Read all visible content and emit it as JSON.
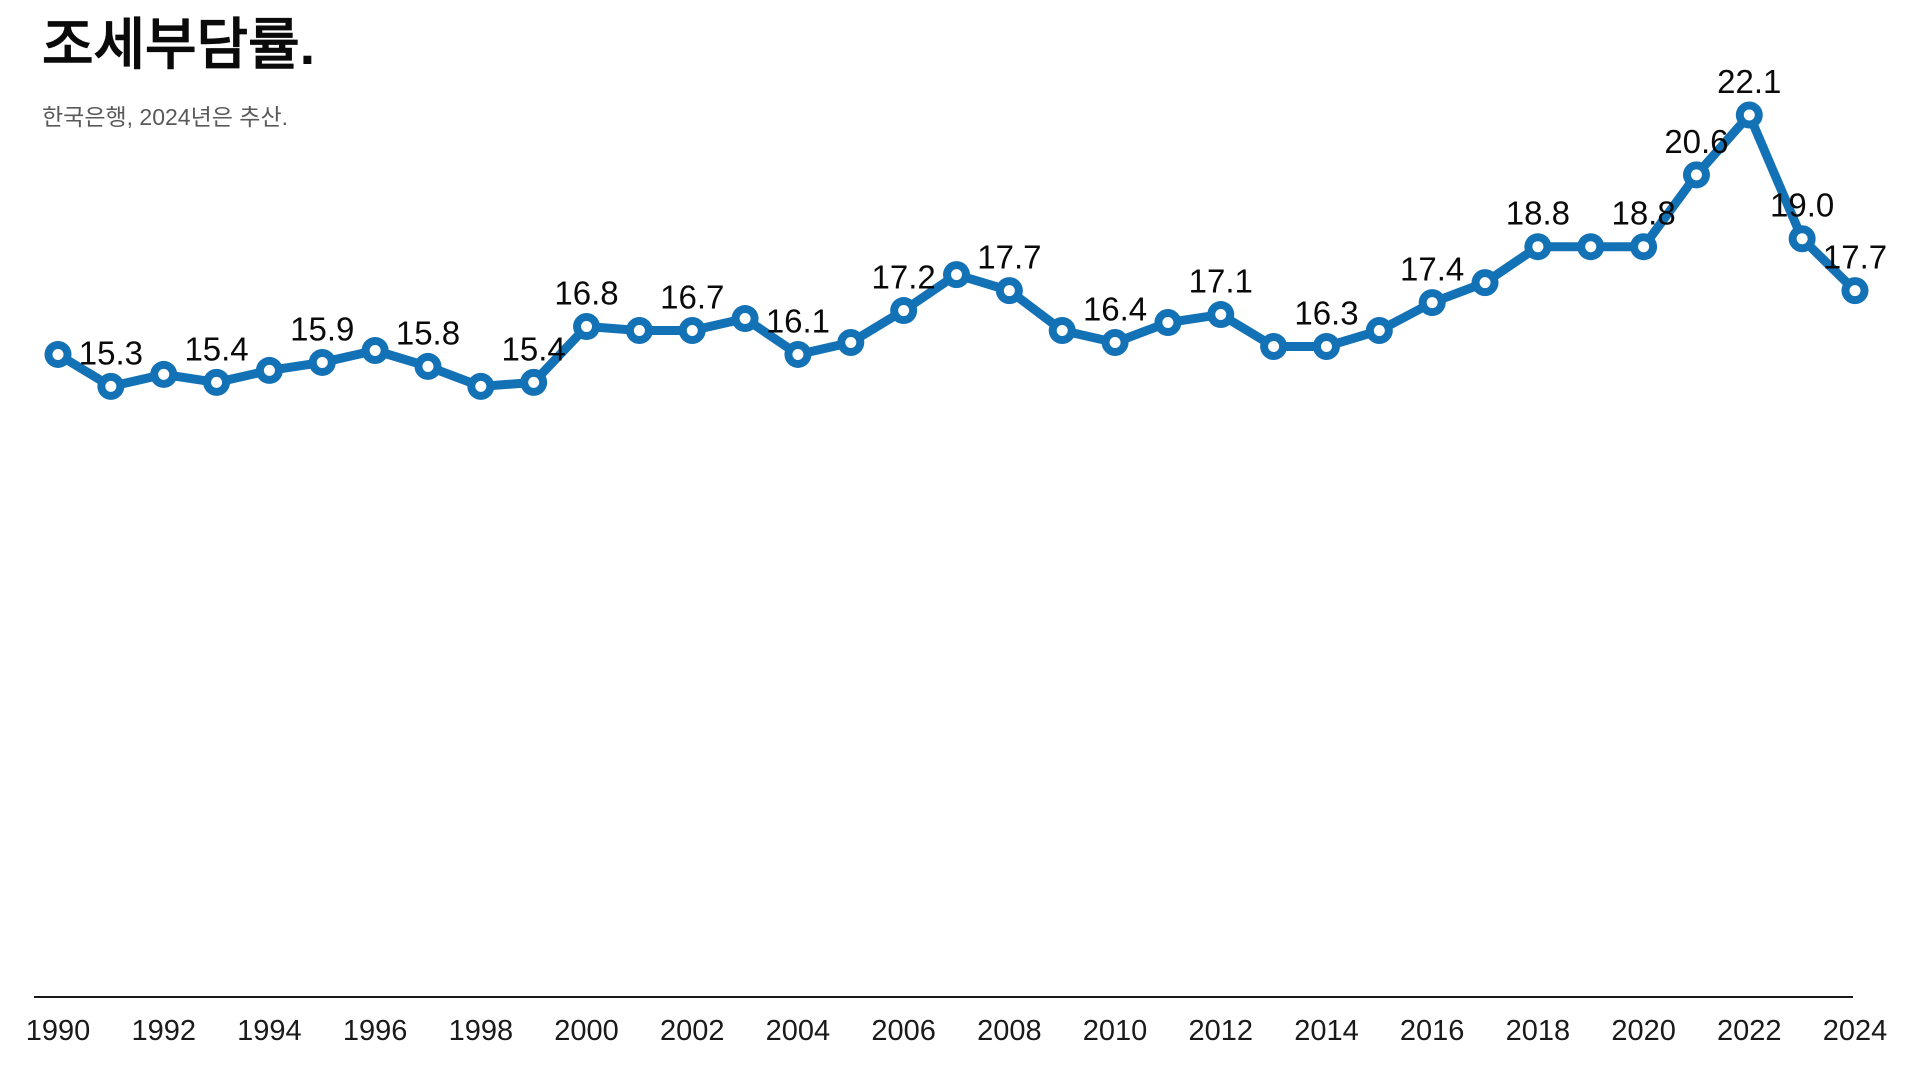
{
  "header": {
    "title": "조세부담률.",
    "subtitle": "한국은행, 2024년은 추산."
  },
  "colors": {
    "line": "#1371b6",
    "marker_fill": "#1371b6",
    "marker_hole": "#ffffff",
    "label_text": "#0a0a0a",
    "axis_line": "#1a1a1a",
    "subtitle_text": "#595959",
    "background": "#ffffff"
  },
  "chart_data": {
    "type": "line",
    "title": "조세부담률.",
    "subtitle": "한국은행, 2024년은 추산.",
    "xlabel": "",
    "ylabel": "",
    "x": [
      1990,
      1991,
      1992,
      1993,
      1994,
      1995,
      1996,
      1997,
      1998,
      1999,
      2000,
      2001,
      2002,
      2003,
      2004,
      2005,
      2006,
      2007,
      2008,
      2009,
      2010,
      2011,
      2012,
      2013,
      2014,
      2015,
      2016,
      2017,
      2018,
      2019,
      2020,
      2021,
      2022,
      2023,
      2024
    ],
    "values": [
      16.1,
      15.3,
      15.6,
      15.4,
      15.7,
      15.9,
      16.2,
      15.8,
      15.3,
      15.4,
      16.8,
      16.7,
      16.7,
      17.0,
      16.1,
      16.4,
      17.2,
      18.1,
      17.7,
      16.7,
      16.4,
      16.9,
      17.1,
      16.3,
      16.3,
      16.7,
      17.4,
      17.9,
      18.8,
      18.8,
      18.8,
      20.6,
      22.1,
      19.0,
      17.7
    ],
    "labeled_points": [
      {
        "year": 1991,
        "label": "15.3"
      },
      {
        "year": 1993,
        "label": "15.4"
      },
      {
        "year": 1995,
        "label": "15.9"
      },
      {
        "year": 1997,
        "label": "15.8"
      },
      {
        "year": 1999,
        "label": "15.4"
      },
      {
        "year": 2000,
        "label": "16.8"
      },
      {
        "year": 2002,
        "label": "16.7"
      },
      {
        "year": 2004,
        "label": "16.1"
      },
      {
        "year": 2006,
        "label": "17.2"
      },
      {
        "year": 2008,
        "label": "17.7"
      },
      {
        "year": 2010,
        "label": "16.4"
      },
      {
        "year": 2012,
        "label": "17.1"
      },
      {
        "year": 2014,
        "label": "16.3"
      },
      {
        "year": 2016,
        "label": "17.4"
      },
      {
        "year": 2018,
        "label": "18.8"
      },
      {
        "year": 2020,
        "label": "18.8"
      },
      {
        "year": 2021,
        "label": "20.6"
      },
      {
        "year": 2022,
        "label": "22.1"
      },
      {
        "year": 2023,
        "label": "19.0"
      },
      {
        "year": 2024,
        "label": "17.7"
      }
    ],
    "x_tick_labels": [
      "1990",
      "1992",
      "1994",
      "1996",
      "1998",
      "2000",
      "2002",
      "2004",
      "2006",
      "2008",
      "2010",
      "2012",
      "2014",
      "2016",
      "2018",
      "2020",
      "2022",
      "2024"
    ],
    "x_tick_every": 2,
    "ylim": [
      0,
      24
    ],
    "grid": false,
    "legend": false
  }
}
